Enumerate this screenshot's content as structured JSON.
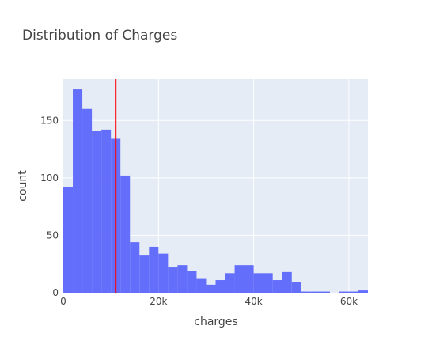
{
  "chart_data": {
    "type": "bar",
    "title": "Distribution of Charges",
    "xlabel": "charges",
    "ylabel": "count",
    "xlim": [
      0,
      64000
    ],
    "ylim": [
      0,
      186
    ],
    "bin_width": 2000,
    "x_ticks": [
      {
        "value": 0,
        "label": "0"
      },
      {
        "value": 20000,
        "label": "20k"
      },
      {
        "value": 40000,
        "label": "40k"
      },
      {
        "value": 60000,
        "label": "60k"
      }
    ],
    "y_ticks": [
      {
        "value": 0,
        "label": "0"
      },
      {
        "value": 50,
        "label": "50"
      },
      {
        "value": 100,
        "label": "100"
      },
      {
        "value": 150,
        "label": "150"
      }
    ],
    "bin_starts": [
      0,
      2000,
      4000,
      6000,
      8000,
      10000,
      12000,
      14000,
      16000,
      18000,
      20000,
      22000,
      24000,
      26000,
      28000,
      30000,
      32000,
      34000,
      36000,
      38000,
      40000,
      42000,
      44000,
      46000,
      48000,
      50000,
      52000,
      54000,
      56000,
      58000,
      60000,
      62000
    ],
    "values": [
      92,
      177,
      160,
      141,
      142,
      134,
      102,
      44,
      33,
      40,
      34,
      22,
      24,
      19,
      12,
      7,
      11,
      17,
      24,
      24,
      17,
      17,
      11,
      18,
      9,
      1,
      1,
      1,
      0,
      1,
      1,
      2
    ],
    "reference_line": {
      "value": 11000,
      "color": "#ff0000"
    },
    "bar_color": "#636efa",
    "plot_background": "#e5ecf6",
    "grid": true
  }
}
